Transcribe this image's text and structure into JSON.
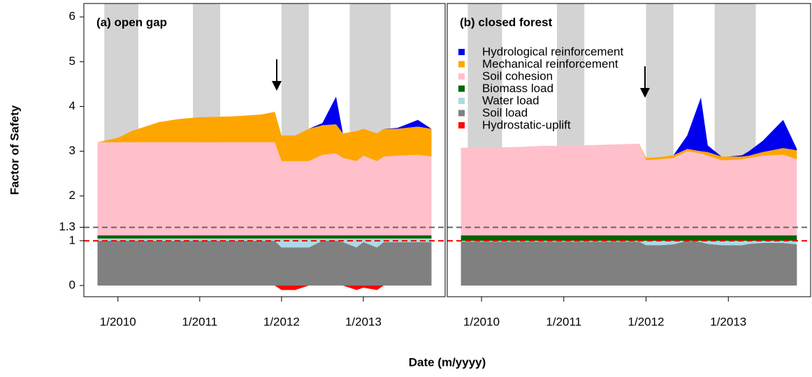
{
  "chart_data": [
    {
      "type": "area",
      "title": "(a) open gap",
      "ylabel": "Factor of Safety",
      "xlabel": "Date (m/yyyy)",
      "x": [
        "10/2009",
        "1/2010",
        "3/2010",
        "5/2010",
        "7/2010",
        "10/2010",
        "1/2011",
        "6/2011",
        "10/2011",
        "12/2011",
        "1/2012",
        "3/2012",
        "5/2012",
        "7/2012",
        "9/2012",
        "10/2012",
        "12/2012",
        "1/2013",
        "3/2013",
        "4/2013",
        "6/2013",
        "9/2013",
        "11/2013"
      ],
      "xlim": [
        "8/2009",
        "1/2014"
      ],
      "xticks": [
        "1/2010",
        "1/2011",
        "1/2012",
        "1/2013"
      ],
      "ylim": [
        -0.25,
        6.3
      ],
      "yticks": [
        0,
        1,
        1.3,
        2,
        3,
        4,
        5,
        6
      ],
      "shaded_periods": [
        [
          "11/2009",
          "4/2010"
        ],
        [
          "12/2010",
          "4/2011"
        ],
        [
          "1/2012",
          "5/2012"
        ],
        [
          "11/2012",
          "5/2013"
        ]
      ],
      "hlines": [
        {
          "value": 1.3,
          "color": "#666666"
        },
        {
          "value": 1,
          "color": "#ff0000"
        }
      ],
      "series": [
        {
          "name": "Hydrological reinforcement",
          "color": "#0000ee",
          "values": [
            0,
            0,
            0,
            0,
            0,
            0,
            0,
            0,
            0,
            0,
            0,
            0,
            0,
            0.05,
            0.62,
            0,
            0,
            0,
            0,
            0,
            0.02,
            0.15,
            0
          ]
        },
        {
          "name": "Mechanical reinforcement",
          "color": "#ffa500",
          "values": [
            0,
            0.1,
            0.25,
            0.35,
            0.45,
            0.52,
            0.56,
            0.58,
            0.62,
            0.68,
            0.57,
            0.57,
            0.72,
            0.66,
            0.65,
            0.55,
            0.67,
            0.6,
            0.62,
            0.62,
            0.6,
            0.63,
            0.62
          ]
        },
        {
          "name": "Soil cohesion",
          "color": "#ffc0cb",
          "values": [
            2.08,
            2.08,
            2.08,
            2.08,
            2.08,
            2.08,
            2.08,
            2.08,
            2.08,
            2.08,
            1.66,
            1.66,
            1.66,
            1.8,
            1.83,
            1.73,
            1.66,
            1.78,
            1.66,
            1.76,
            1.78,
            1.8,
            1.76
          ]
        },
        {
          "name": "Biomass load",
          "color": "#006400",
          "values": [
            0.07,
            0.07,
            0.07,
            0.07,
            0.07,
            0.07,
            0.07,
            0.07,
            0.07,
            0.07,
            0.07,
            0.07,
            0.07,
            0.07,
            0.07,
            0.07,
            0.07,
            0.07,
            0.07,
            0.07,
            0.07,
            0.07,
            0.07
          ]
        },
        {
          "name": "Water load",
          "color": "#add8e6",
          "values": [
            0.05,
            0.05,
            0.05,
            0.05,
            0.05,
            0.05,
            0.05,
            0.05,
            0.05,
            0.05,
            0.2,
            0.2,
            0.2,
            0.05,
            0.05,
            0.08,
            0.2,
            0.08,
            0.2,
            0.08,
            0.08,
            0.08,
            0.08
          ]
        },
        {
          "name": "Soil load",
          "color": "#808080",
          "values": [
            1,
            1,
            1,
            1,
            1,
            1,
            1,
            1,
            1,
            1,
            0.85,
            0.85,
            0.85,
            1,
            1,
            0.97,
            0.85,
            0.97,
            0.85,
            0.97,
            0.97,
            0.97,
            0.97
          ]
        },
        {
          "name": "Hydrostatic-uplift",
          "color": "#ff0000",
          "values": [
            0,
            0,
            0,
            0,
            0,
            0,
            0,
            0,
            0,
            0,
            -0.1,
            -0.1,
            0,
            0,
            0,
            0,
            -0.1,
            -0.05,
            -0.1,
            0,
            0,
            0,
            0
          ]
        }
      ]
    },
    {
      "type": "area",
      "title": "(b) closed forest",
      "legend": "top-left",
      "x": [
        "10/2009",
        "1/2010",
        "3/2010",
        "5/2010",
        "7/2010",
        "10/2010",
        "1/2011",
        "6/2011",
        "10/2011",
        "12/2011",
        "1/2012",
        "3/2012",
        "5/2012",
        "7/2012",
        "9/2012",
        "10/2012",
        "12/2012",
        "1/2013",
        "3/2013",
        "4/2013",
        "6/2013",
        "9/2013",
        "11/2013"
      ],
      "xlim": [
        "8/2009",
        "1/2014"
      ],
      "xticks": [
        "1/2010",
        "1/2011",
        "1/2012",
        "1/2013"
      ],
      "ylim": [
        -0.25,
        6.3
      ],
      "shaded_periods": [
        [
          "11/2009",
          "4/2010"
        ],
        [
          "12/2010",
          "4/2011"
        ],
        [
          "1/2012",
          "5/2012"
        ],
        [
          "11/2012",
          "5/2013"
        ]
      ],
      "hlines": [
        {
          "value": 1.3,
          "color": "#666666"
        },
        {
          "value": 1,
          "color": "#ff0000"
        }
      ],
      "series": [
        {
          "name": "Hydrological reinforcement",
          "color": "#0000ee",
          "values": [
            0,
            0,
            0,
            0,
            0,
            0,
            0,
            0,
            0,
            0,
            0,
            0,
            0,
            0.3,
            1.2,
            0.15,
            0,
            0,
            0.03,
            0.1,
            0.25,
            0.63,
            0.03
          ]
        },
        {
          "name": "Mechanical reinforcement",
          "color": "#ffa500",
          "values": [
            0,
            0,
            0,
            0,
            0,
            0,
            0,
            0,
            0,
            0,
            0.05,
            0.05,
            0.06,
            0.05,
            0.05,
            0.08,
            0.08,
            0.08,
            0.06,
            0.05,
            0.08,
            0.15,
            0.2
          ]
        },
        {
          "name": "Soil cohesion",
          "color": "#ffc0cb",
          "values": [
            1.96,
            1.96,
            1.96,
            1.97,
            1.98,
            2.0,
            2.0,
            2.02,
            2.04,
            2.05,
            1.68,
            1.7,
            1.73,
            1.88,
            1.83,
            1.78,
            1.68,
            1.68,
            1.7,
            1.73,
            1.78,
            1.8,
            1.7
          ]
        },
        {
          "name": "Biomass load",
          "color": "#006400",
          "values": [
            0.12,
            0.12,
            0.12,
            0.12,
            0.12,
            0.12,
            0.12,
            0.12,
            0.12,
            0.12,
            0.12,
            0.12,
            0.12,
            0.12,
            0.12,
            0.12,
            0.12,
            0.12,
            0.12,
            0.12,
            0.12,
            0.12,
            0.12
          ]
        },
        {
          "name": "Water load",
          "color": "#add8e6",
          "values": [
            0.02,
            0.02,
            0.02,
            0.02,
            0.02,
            0.02,
            0.02,
            0.02,
            0.02,
            0.02,
            0.1,
            0.1,
            0.08,
            0,
            0.03,
            0.07,
            0.1,
            0.1,
            0.1,
            0.07,
            0.05,
            0.05,
            0.08
          ]
        },
        {
          "name": "Soil load",
          "color": "#808080",
          "values": [
            0.98,
            0.98,
            0.98,
            0.98,
            0.98,
            0.98,
            0.98,
            0.98,
            0.98,
            0.98,
            0.9,
            0.9,
            0.92,
            1,
            0.97,
            0.93,
            0.9,
            0.9,
            0.9,
            0.93,
            0.95,
            0.95,
            0.92
          ]
        },
        {
          "name": "Hydrostatic-uplift",
          "color": "#ff0000",
          "values": [
            0,
            0,
            0,
            0,
            0,
            0,
            0,
            0,
            0,
            0,
            0,
            0,
            0,
            0,
            0,
            0,
            0,
            0,
            0,
            0,
            0,
            0,
            0
          ]
        }
      ]
    }
  ]
}
